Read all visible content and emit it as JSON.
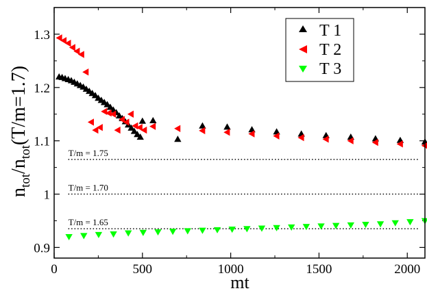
{
  "chart_data": {
    "type": "scatter",
    "title": "",
    "xlabel": "mt",
    "ylabel_parts": {
      "n1": "n",
      "sub1": "tot",
      "slash": "/",
      "n2": "n",
      "sub2": "tot",
      "tail": "(T/m=1.7)"
    },
    "xlim": [
      0,
      2100
    ],
    "ylim": [
      0.88,
      1.35
    ],
    "x_ticks": [
      0,
      500,
      1000,
      1500,
      2000
    ],
    "x_tick_labels": [
      "0",
      "500",
      "1000",
      "1500",
      "2000"
    ],
    "y_ticks": [
      0.9,
      1.0,
      1.1,
      1.2,
      1.3
    ],
    "y_tick_labels": [
      "0.9",
      "1",
      "1.1",
      "1.2",
      "1.3"
    ],
    "legend": {
      "position": "top-right"
    },
    "reference_lines": [
      {
        "y": 1.065,
        "label": "T/m = 1.75"
      },
      {
        "y": 1.0,
        "label": "T/m = 1.70"
      },
      {
        "y": 0.935,
        "label": "T/m = 1.65"
      }
    ],
    "series": [
      {
        "name": "T 1",
        "marker": "triangle-up",
        "color": "#000000",
        "points": [
          [
            28,
            1.22
          ],
          [
            45,
            1.219
          ],
          [
            62,
            1.217
          ],
          [
            80,
            1.215
          ],
          [
            97,
            1.213
          ],
          [
            114,
            1.21
          ],
          [
            131,
            1.207
          ],
          [
            148,
            1.204
          ],
          [
            165,
            1.201
          ],
          [
            182,
            1.197
          ],
          [
            199,
            1.193
          ],
          [
            216,
            1.189
          ],
          [
            233,
            1.185
          ],
          [
            250,
            1.18
          ],
          [
            267,
            1.176
          ],
          [
            284,
            1.172
          ],
          [
            301,
            1.168
          ],
          [
            318,
            1.163
          ],
          [
            335,
            1.158
          ],
          [
            352,
            1.153
          ],
          [
            369,
            1.147
          ],
          [
            386,
            1.142
          ],
          [
            403,
            1.136
          ],
          [
            420,
            1.13
          ],
          [
            437,
            1.124
          ],
          [
            454,
            1.118
          ],
          [
            471,
            1.112
          ],
          [
            488,
            1.107
          ],
          [
            500,
            1.137
          ],
          [
            560,
            1.138
          ],
          [
            700,
            1.103
          ],
          [
            840,
            1.128
          ],
          [
            980,
            1.126
          ],
          [
            1120,
            1.121
          ],
          [
            1260,
            1.117
          ],
          [
            1400,
            1.113
          ],
          [
            1540,
            1.11
          ],
          [
            1680,
            1.107
          ],
          [
            1820,
            1.104
          ],
          [
            1960,
            1.101
          ],
          [
            2100,
            1.098
          ]
        ]
      },
      {
        "name": "T 2",
        "marker": "triangle-left",
        "color": "#ff0000",
        "points": [
          [
            30,
            1.293
          ],
          [
            55,
            1.288
          ],
          [
            80,
            1.283
          ],
          [
            105,
            1.275
          ],
          [
            130,
            1.268
          ],
          [
            155,
            1.262
          ],
          [
            180,
            1.229
          ],
          [
            210,
            1.135
          ],
          [
            235,
            1.12
          ],
          [
            260,
            1.125
          ],
          [
            285,
            1.155
          ],
          [
            310,
            1.152
          ],
          [
            335,
            1.15
          ],
          [
            360,
            1.12
          ],
          [
            385,
            1.14
          ],
          [
            410,
            1.135
          ],
          [
            435,
            1.15
          ],
          [
            460,
            1.128
          ],
          [
            485,
            1.125
          ],
          [
            510,
            1.12
          ],
          [
            560,
            1.127
          ],
          [
            700,
            1.123
          ],
          [
            840,
            1.119
          ],
          [
            980,
            1.116
          ],
          [
            1120,
            1.113
          ],
          [
            1260,
            1.109
          ],
          [
            1400,
            1.106
          ],
          [
            1540,
            1.103
          ],
          [
            1680,
            1.1
          ],
          [
            1820,
            1.097
          ],
          [
            1960,
            1.094
          ],
          [
            2100,
            1.091
          ]
        ]
      },
      {
        "name": "T 3",
        "marker": "triangle-down",
        "color": "#00ff00",
        "points": [
          [
            84,
            0.92
          ],
          [
            168,
            0.922
          ],
          [
            252,
            0.924
          ],
          [
            336,
            0.925
          ],
          [
            420,
            0.927
          ],
          [
            504,
            0.928
          ],
          [
            588,
            0.929
          ],
          [
            672,
            0.93
          ],
          [
            756,
            0.931
          ],
          [
            840,
            0.932
          ],
          [
            924,
            0.933
          ],
          [
            1008,
            0.934
          ],
          [
            1092,
            0.935
          ],
          [
            1176,
            0.936
          ],
          [
            1260,
            0.937
          ],
          [
            1344,
            0.938
          ],
          [
            1428,
            0.939
          ],
          [
            1512,
            0.94
          ],
          [
            1596,
            0.941
          ],
          [
            1680,
            0.942
          ],
          [
            1764,
            0.943
          ],
          [
            1848,
            0.944
          ],
          [
            1932,
            0.946
          ],
          [
            2016,
            0.948
          ],
          [
            2100,
            0.95
          ]
        ]
      }
    ]
  }
}
